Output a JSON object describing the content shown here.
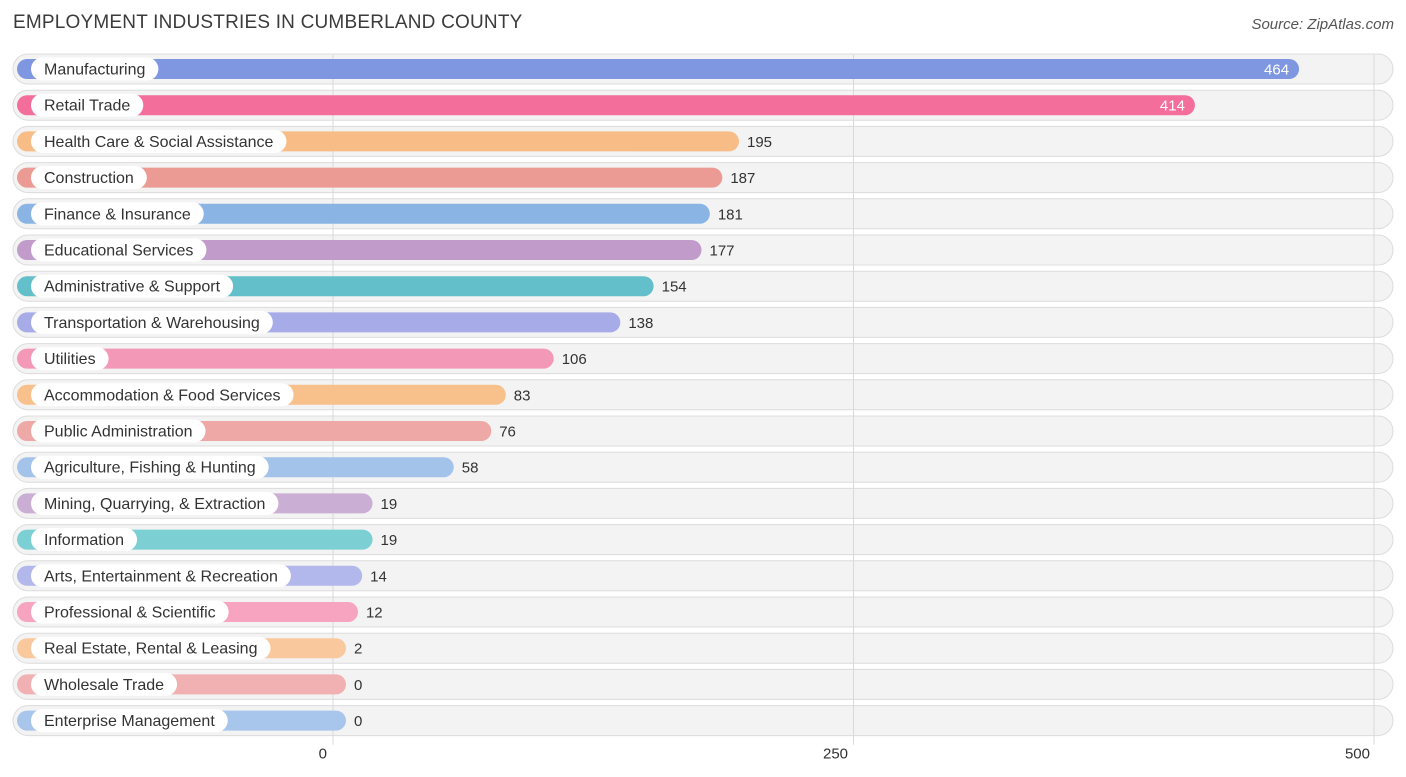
{
  "chart_data": {
    "type": "bar",
    "orientation": "horizontal",
    "title": "EMPLOYMENT INDUSTRIES IN CUMBERLAND COUNTY",
    "source": "Source: ZipAtlas.com",
    "categories": [
      "Manufacturing",
      "Retail Trade",
      "Health Care & Social Assistance",
      "Construction",
      "Finance & Insurance",
      "Educational Services",
      "Administrative & Support",
      "Transportation & Warehousing",
      "Utilities",
      "Accommodation & Food Services",
      "Public Administration",
      "Agriculture, Fishing & Hunting",
      "Mining, Quarrying, & Extraction",
      "Information",
      "Arts, Entertainment & Recreation",
      "Professional & Scientific",
      "Real Estate, Rental & Leasing",
      "Wholesale Trade",
      "Enterprise Management"
    ],
    "values": [
      464,
      414,
      195,
      187,
      181,
      177,
      154,
      138,
      106,
      83,
      76,
      58,
      19,
      19,
      14,
      12,
      2,
      0,
      0
    ],
    "colors": [
      "#7f97e0",
      "#f46e9c",
      "#f8bd86",
      "#eb9b93",
      "#8ab4e4",
      "#c19cca",
      "#63bfca",
      "#a7abe7",
      "#f498b8",
      "#f8c08b",
      "#eea8a6",
      "#a4c3ea",
      "#cbaed4",
      "#7ccfd3",
      "#b2b7ec",
      "#f6a4c0",
      "#f9c99d",
      "#f1b0b1",
      "#a8c6ec"
    ],
    "xlim": [
      0,
      500
    ],
    "xticks": [
      0,
      250,
      500
    ],
    "xtick_labels": [
      "0",
      "250",
      "500"
    ],
    "grid": true,
    "xlabel": "",
    "ylabel": ""
  }
}
